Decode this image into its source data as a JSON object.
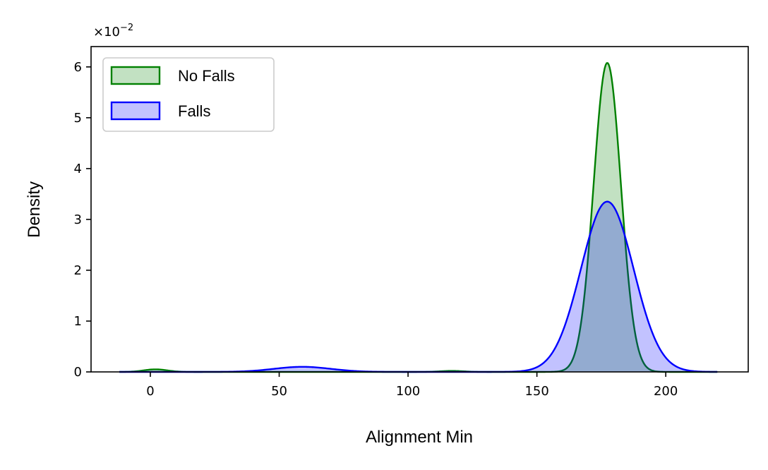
{
  "chart_data": {
    "type": "area",
    "xlabel": "Alignment Min",
    "ylabel": "Density",
    "y_offset_label": "×10",
    "y_offset_exponent": "−2",
    "xlim": [
      -23,
      232
    ],
    "ylim": [
      0,
      6.4
    ],
    "x_ticks": [
      0,
      50,
      100,
      150,
      200
    ],
    "x_tick_labels": [
      "0",
      "50",
      "100",
      "150",
      "200"
    ],
    "y_ticks": [
      0,
      1,
      2,
      3,
      4,
      5,
      6
    ],
    "y_tick_labels": [
      "0",
      "1",
      "2",
      "3",
      "4",
      "5",
      "6"
    ],
    "grid": false,
    "legend_position": "top-left",
    "x_range": [
      -12,
      220
    ],
    "series": [
      {
        "name": "No Falls",
        "line_color": "#008000",
        "fill_color": "#008000",
        "fill_opacity": 0.24,
        "components": [
          {
            "mu": 2,
            "sigma": 4.5,
            "amp": 0.05
          },
          {
            "mu": 117,
            "sigma": 4.5,
            "amp": 0.02
          },
          {
            "mu": 177.3,
            "sigma": 5.3,
            "amp": 6.08
          }
        ]
      },
      {
        "name": "Falls",
        "line_color": "#0000ff",
        "fill_color": "#0000ff",
        "fill_opacity": 0.24,
        "components": [
          {
            "mu": 59,
            "sigma": 11,
            "amp": 0.1
          },
          {
            "mu": 177.3,
            "sigma": 10.2,
            "amp": 3.35
          }
        ]
      }
    ]
  }
}
